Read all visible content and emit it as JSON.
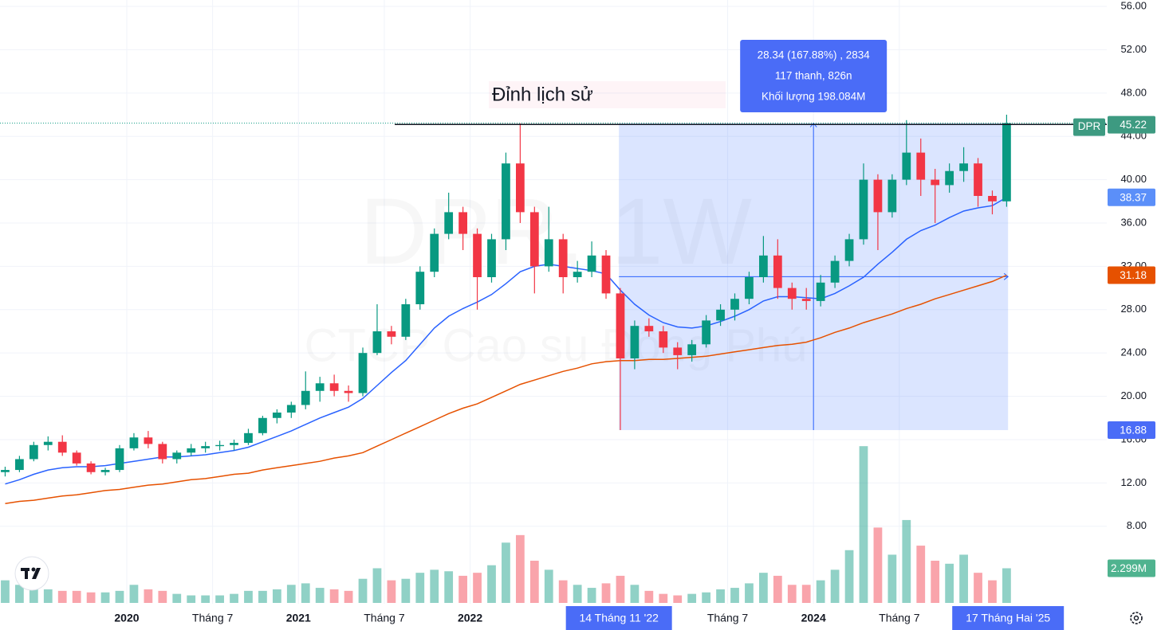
{
  "chart_data": {
    "type": "candlestick",
    "symbol": "DPR",
    "watermark": "DPR, 1W",
    "watermark_subtitle": "CTCP Cao su Đồng Phú",
    "x": [
      0,
      1,
      2,
      3,
      4,
      5,
      6,
      7,
      8,
      9,
      10,
      11,
      12,
      13,
      14,
      15,
      16,
      17,
      18,
      19,
      20,
      21,
      22,
      23,
      24,
      25,
      26,
      27,
      28,
      29,
      30,
      31,
      32,
      33,
      34,
      35,
      36,
      37,
      38,
      39,
      40,
      41,
      42,
      43,
      44,
      45,
      46,
      47,
      48,
      49,
      50,
      51,
      52,
      53,
      54,
      55,
      56,
      57,
      58,
      59,
      60,
      61,
      62,
      63,
      64,
      65,
      66,
      67,
      68,
      69,
      70
    ],
    "open": [
      13.0,
      13.2,
      14.2,
      15.5,
      15.8,
      14.8,
      13.8,
      13.0,
      13.2,
      15.2,
      16.2,
      15.6,
      14.2,
      14.8,
      15.2,
      15.4,
      15.5,
      15.7,
      16.6,
      18.0,
      18.5,
      19.2,
      20.5,
      21.2,
      20.5,
      20.3,
      24.0,
      26.0,
      25.5,
      28.5,
      31.5,
      35.0,
      37.0,
      35.0,
      31.0,
      34.5,
      41.5,
      37.0,
      32.0,
      34.5,
      31.0,
      31.5,
      33.0,
      29.5,
      23.5,
      26.5,
      26.0,
      24.5,
      23.8,
      24.8,
      27.0,
      28.0,
      29.0,
      31.0,
      33.0,
      30.0,
      29.0,
      28.8,
      30.5,
      32.5,
      34.5,
      40.0,
      37.0,
      40.0,
      42.5,
      40.0,
      39.5,
      40.8,
      41.5,
      38.5,
      38.0
    ],
    "high": [
      13.5,
      14.5,
      15.8,
      16.3,
      16.4,
      15.0,
      14.0,
      13.4,
      15.5,
      16.6,
      16.8,
      15.8,
      15.0,
      15.6,
      15.8,
      15.9,
      16.0,
      17.0,
      18.2,
      18.8,
      19.5,
      22.3,
      21.8,
      22.0,
      21.0,
      24.5,
      28.5,
      26.5,
      29.0,
      32.0,
      35.5,
      38.8,
      37.5,
      35.5,
      35.0,
      42.5,
      45.2,
      37.5,
      37.5,
      35.0,
      32.5,
      34.3,
      33.5,
      30.0,
      27.0,
      27.2,
      26.5,
      25.0,
      25.2,
      27.5,
      28.5,
      29.5,
      31.5,
      34.8,
      34.5,
      30.5,
      30.0,
      31.2,
      33.0,
      35.0,
      41.5,
      40.5,
      40.5,
      45.5,
      43.8,
      41.0,
      41.5,
      43.0,
      42.0,
      39.0,
      46.0
    ],
    "low": [
      12.6,
      13.0,
      14.0,
      15.0,
      14.5,
      13.6,
      12.8,
      12.7,
      13.0,
      15.0,
      15.2,
      13.8,
      13.8,
      14.5,
      14.8,
      15.0,
      15.0,
      15.5,
      16.4,
      17.5,
      18.0,
      18.8,
      19.5,
      20.0,
      19.5,
      20.0,
      23.8,
      24.8,
      25.2,
      28.0,
      31.0,
      34.5,
      33.5,
      28.0,
      30.5,
      33.5,
      36.0,
      29.5,
      31.5,
      29.5,
      30.5,
      31.0,
      29.0,
      16.88,
      22.5,
      25.5,
      24.0,
      22.5,
      23.2,
      24.5,
      26.5,
      27.0,
      28.5,
      30.5,
      29.0,
      28.0,
      28.0,
      28.3,
      30.0,
      32.0,
      34.0,
      33.5,
      36.5,
      39.5,
      38.5,
      36.0,
      38.8,
      39.8,
      37.5,
      36.8,
      37.5
    ],
    "close": [
      13.2,
      14.2,
      15.5,
      15.8,
      14.8,
      13.8,
      13.0,
      13.2,
      15.2,
      16.2,
      15.6,
      14.2,
      14.8,
      15.2,
      15.4,
      15.5,
      15.7,
      16.6,
      18.0,
      18.5,
      19.2,
      20.5,
      21.2,
      20.5,
      20.3,
      24.0,
      26.0,
      25.5,
      28.5,
      31.5,
      35.0,
      37.0,
      35.0,
      31.0,
      34.5,
      41.5,
      37.0,
      32.0,
      34.5,
      31.0,
      31.5,
      33.0,
      29.5,
      23.5,
      26.5,
      26.0,
      24.5,
      23.8,
      24.8,
      27.0,
      28.0,
      29.0,
      31.0,
      33.0,
      30.0,
      29.0,
      28.8,
      30.5,
      32.5,
      34.5,
      40.0,
      37.0,
      40.0,
      42.5,
      40.0,
      39.5,
      40.8,
      41.5,
      38.5,
      38.0,
      45.22
    ],
    "up_color": "#089981",
    "down_color": "#f23645",
    "volume": {
      "values": [
        1.5,
        1.2,
        1.0,
        0.9,
        0.8,
        0.8,
        0.7,
        0.7,
        0.8,
        1.2,
        0.9,
        0.8,
        0.6,
        0.5,
        0.5,
        0.5,
        0.6,
        0.8,
        0.8,
        0.9,
        1.2,
        1.3,
        1.0,
        0.9,
        0.8,
        1.6,
        2.3,
        1.5,
        1.6,
        2.0,
        2.2,
        2.1,
        1.8,
        2.0,
        2.5,
        4.0,
        4.5,
        2.8,
        2.2,
        1.5,
        1.2,
        1.0,
        1.3,
        1.8,
        1.2,
        0.8,
        0.6,
        0.5,
        0.6,
        0.7,
        0.9,
        1.0,
        1.3,
        2.0,
        1.8,
        1.2,
        1.2,
        1.5,
        2.2,
        3.5,
        10.4,
        5.0,
        3.2,
        5.5,
        3.8,
        2.8,
        2.6,
        3.2,
        2.0,
        1.5,
        2.299
      ],
      "ylim": [
        0,
        40
      ],
      "last": {
        "value": 2.299,
        "label": "2.299M"
      }
    },
    "ma_lines": [
      {
        "color": "#2962ff",
        "values": [
          11.9,
          12.3,
          12.8,
          13.2,
          13.4,
          13.5,
          13.5,
          13.6,
          13.8,
          14.0,
          14.2,
          14.4,
          14.4,
          14.5,
          14.6,
          14.8,
          15.0,
          15.3,
          15.8,
          16.3,
          16.8,
          17.4,
          18.0,
          18.5,
          19.0,
          19.8,
          21.0,
          22.2,
          23.3,
          24.8,
          26.3,
          27.4,
          28.1,
          28.7,
          29.4,
          30.4,
          31.5,
          32.0,
          32.2,
          32.0,
          31.8,
          31.6,
          31.3,
          29.8,
          28.5,
          27.5,
          26.8,
          26.4,
          26.3,
          26.5,
          26.9,
          27.4,
          28.0,
          28.8,
          29.2,
          29.2,
          29.1,
          29.0,
          29.5,
          30.2,
          31.0,
          32.2,
          33.3,
          34.5,
          35.3,
          35.8,
          36.5,
          37.1,
          37.4,
          37.6,
          38.37
        ]
      },
      {
        "color": "#e65100",
        "values": [
          10.1,
          10.3,
          10.4,
          10.6,
          10.8,
          10.9,
          11.1,
          11.3,
          11.4,
          11.6,
          11.8,
          11.9,
          12.1,
          12.3,
          12.4,
          12.6,
          12.8,
          12.9,
          13.2,
          13.4,
          13.6,
          13.8,
          14.0,
          14.3,
          14.5,
          14.8,
          15.4,
          16.0,
          16.6,
          17.2,
          17.8,
          18.4,
          18.9,
          19.3,
          19.9,
          20.5,
          21.1,
          21.5,
          21.9,
          22.3,
          22.6,
          23.0,
          23.2,
          23.3,
          23.3,
          23.4,
          23.4,
          23.5,
          23.6,
          23.7,
          23.9,
          24.1,
          24.3,
          24.5,
          24.7,
          24.8,
          25.0,
          25.4,
          25.9,
          26.3,
          26.8,
          27.2,
          27.6,
          28.1,
          28.5,
          29.0,
          29.4,
          29.8,
          30.2,
          30.6,
          31.18
        ]
      }
    ],
    "xlim": [
      -0.36,
      77
    ],
    "xticks": [
      {
        "value": 8.5,
        "label": "2020"
      },
      {
        "value": 14.5,
        "label": "Tháng 7"
      },
      {
        "value": 20.5,
        "label": "2021"
      },
      {
        "value": 26.5,
        "label": "Tháng 7"
      },
      {
        "value": 32.5,
        "label": "2022"
      },
      {
        "value": 50.5,
        "label": "Tháng 7"
      },
      {
        "value": 56.5,
        "label": "2024"
      },
      {
        "value": 62.5,
        "label": "Tháng 7"
      }
    ],
    "ylim": [
      0.85,
      56.59
    ],
    "yticks": [
      {
        "value": 56,
        "label": "56.00"
      },
      {
        "value": 52,
        "label": "52.00"
      },
      {
        "value": 48,
        "label": "48.00"
      },
      {
        "value": 44,
        "label": "44.00"
      },
      {
        "value": 40,
        "label": "40.00"
      },
      {
        "value": 36,
        "label": "36.00"
      },
      {
        "value": 32,
        "label": "32.00"
      },
      {
        "value": 28,
        "label": "28.00"
      },
      {
        "value": 24,
        "label": "24.00"
      },
      {
        "value": 20,
        "label": "20.00"
      },
      {
        "value": 16,
        "label": "16.00"
      },
      {
        "value": 12,
        "label": "12.00"
      },
      {
        "value": 8,
        "label": "8.00"
      }
    ],
    "grid": true,
    "range_box": {
      "x": [
        {
          "value": 42.9,
          "label": "14 Tháng 11 '22"
        },
        {
          "value": 70.1,
          "label": "17 Tháng Hai '25"
        }
      ],
      "y": [
        16.88,
        45.22
      ],
      "lines": [
        "28.34 (167.88%) , 2834",
        "117 thanh, 826n",
        "Khối lượng 198.084M"
      ]
    },
    "annotation": {
      "text": "Đỉnh lịch sử",
      "value": 45.1,
      "x_from": 27.23
    }
  }
}
